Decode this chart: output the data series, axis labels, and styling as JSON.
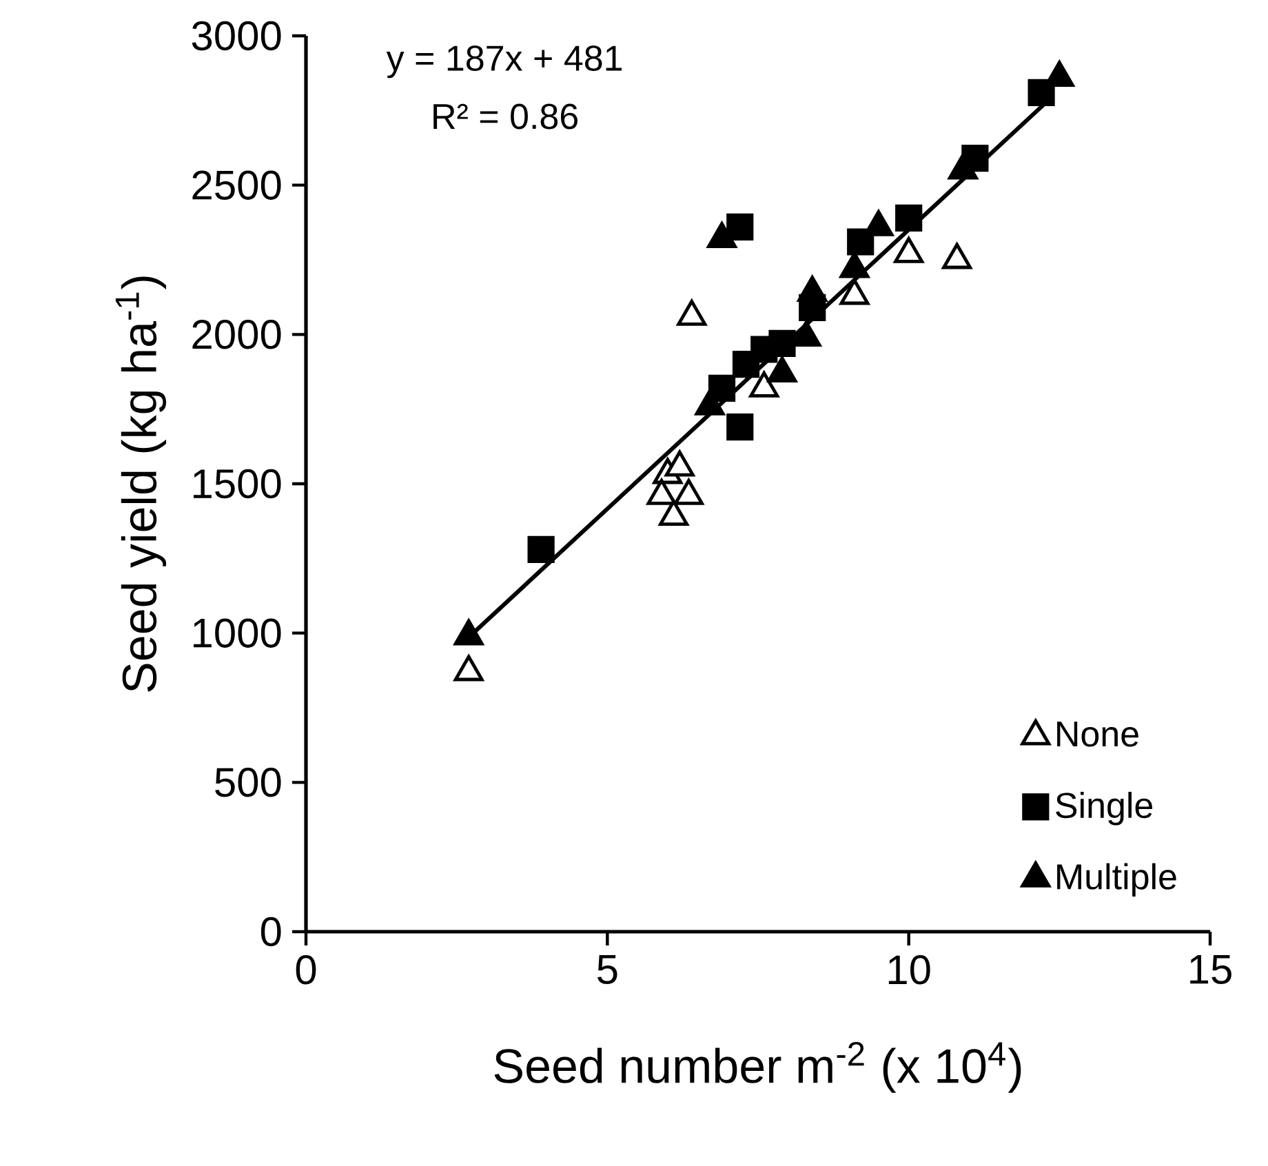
{
  "chart_data": {
    "type": "scatter",
    "xlabel": "Seed number m$^{-2}$ (x 10$^{4}$)",
    "ylabel": "Seed yield (kg ha$^{-1}$)",
    "xlim": [
      0,
      15
    ],
    "xticks": [
      0,
      5,
      10,
      15
    ],
    "ylim": [
      0,
      3000
    ],
    "yticks": [
      0,
      500,
      1000,
      1500,
      2000,
      2500,
      3000
    ],
    "grid": false,
    "legend": "bottom right",
    "annotations": [
      "y = 187x + 481",
      "R² = 0.86"
    ],
    "series": [
      {
        "name": "None",
        "color": "#ffffff",
        "marker": "triangle",
        "x": [
          2.7,
          6.4,
          6.0,
          6.2,
          5.9,
          6.35,
          6.1,
          7.4,
          7.6,
          7.8,
          9.1,
          10.0,
          10.8
        ],
        "values": [
          870,
          2060,
          1530,
          1555,
          1460,
          1460,
          1390,
          null,
          1820,
          null,
          2130,
          2270,
          2250
        ]
      },
      {
        "name": "Single",
        "color": "#000000",
        "marker": "square",
        "x": [
          3.9,
          7.2,
          6.9,
          7.2,
          7.3,
          7.6,
          7.9,
          8.4,
          9.2,
          10.0,
          11.1,
          12.2
        ],
        "values": [
          1280,
          2360,
          1820,
          1690,
          1900,
          1950,
          1970,
          2090,
          2310,
          2390,
          2590,
          2810
        ]
      },
      {
        "name": "Multiple",
        "color": "#000000",
        "marker": "triangle",
        "x": [
          2.7,
          6.9,
          6.7,
          7.9,
          8.3,
          8.4,
          9.1,
          9.5,
          10.9,
          12.5
        ],
        "values": [
          990,
          2320,
          1760,
          1870,
          1990,
          2140,
          2220,
          2360,
          2550,
          2860
        ]
      },
      {
        "type": "line",
        "color": "#000000",
        "marker": "none",
        "x": [
          2.7,
          12.3
        ],
        "values": [
          986,
          2781
        ]
      }
    ]
  }
}
